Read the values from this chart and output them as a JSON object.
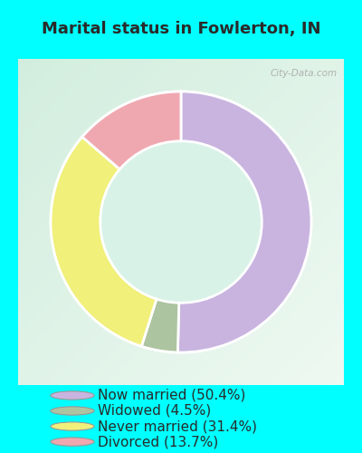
{
  "title": "Marital status in Fowlerton, IN",
  "slices": [
    50.4,
    4.5,
    31.4,
    13.7
  ],
  "colors": [
    "#c9b4e0",
    "#adc4a0",
    "#f0f07a",
    "#f0a8b0"
  ],
  "labels": [
    "Now married (50.4%)",
    "Widowed (4.5%)",
    "Never married (31.4%)",
    "Divorced (13.7%)"
  ],
  "legend_colors": [
    "#c9b4e0",
    "#adc4a0",
    "#f0f07a",
    "#f0a8b0"
  ],
  "chart_bg_top": "#d8f0e8",
  "chart_bg_bottom": "#e8f8f0",
  "outer_bg": "#00ffff",
  "title_fontsize": 13,
  "legend_fontsize": 11,
  "watermark": "City-Data.com",
  "donut_width": 0.38
}
